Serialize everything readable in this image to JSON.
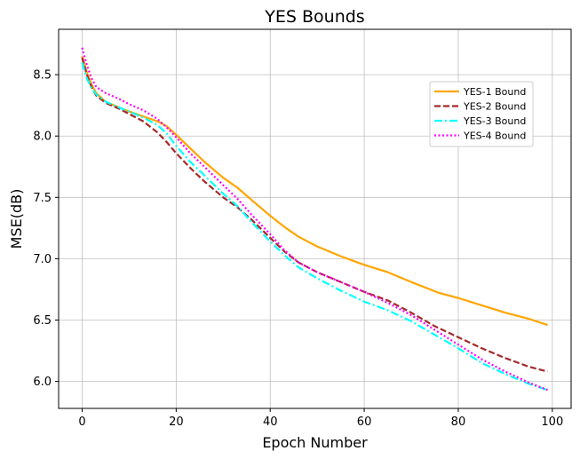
{
  "chart_data": {
    "type": "line",
    "title": "YES Bounds",
    "xlabel": "Epoch Number",
    "ylabel": "MSE(dB)",
    "xlim": [
      -5,
      104
    ],
    "ylim": [
      5.78,
      8.87
    ],
    "xticks": [
      0,
      20,
      40,
      60,
      80,
      100
    ],
    "yticks": [
      6.0,
      6.5,
      7.0,
      7.5,
      8.0,
      8.5
    ],
    "xtick_labels": [
      "0",
      "20",
      "40",
      "60",
      "80",
      "100"
    ],
    "ytick_labels": [
      "6.0",
      "6.5",
      "7.0",
      "7.5",
      "8.0",
      "8.5"
    ],
    "grid": true,
    "legend_position": "upper-right",
    "series": [
      {
        "name": "YES-1 Bound",
        "color": "#FFA500",
        "style": "solid",
        "x": [
          0,
          1,
          2,
          3,
          5,
          8,
          10,
          13,
          16,
          18,
          20,
          23,
          26,
          30,
          33,
          36,
          40,
          43,
          46,
          50,
          55,
          60,
          65,
          70,
          76,
          80,
          85,
          90,
          95,
          99
        ],
        "y": [
          8.65,
          8.52,
          8.42,
          8.35,
          8.28,
          8.23,
          8.2,
          8.16,
          8.12,
          8.08,
          8.01,
          7.9,
          7.79,
          7.66,
          7.58,
          7.48,
          7.35,
          7.26,
          7.18,
          7.1,
          7.02,
          6.95,
          6.89,
          6.81,
          6.72,
          6.68,
          6.62,
          6.56,
          6.51,
          6.46
        ]
      },
      {
        "name": "YES-2 Bound",
        "color": "#A52A2A",
        "style": "dashed",
        "x": [
          0,
          1,
          2,
          3,
          5,
          8,
          10,
          13,
          16,
          18,
          20,
          23,
          26,
          30,
          33,
          36,
          40,
          43,
          46,
          50,
          55,
          60,
          65,
          70,
          75,
          80,
          85,
          90,
          95,
          99
        ],
        "y": [
          8.64,
          8.5,
          8.4,
          8.33,
          8.27,
          8.22,
          8.18,
          8.12,
          8.03,
          7.95,
          7.86,
          7.74,
          7.63,
          7.5,
          7.42,
          7.32,
          7.17,
          7.06,
          6.97,
          6.89,
          6.81,
          6.73,
          6.66,
          6.56,
          6.45,
          6.36,
          6.27,
          6.19,
          6.12,
          6.08
        ]
      },
      {
        "name": "YES-3 Bound",
        "color": "#00FFFF",
        "style": "dashdot",
        "x": [
          0,
          1,
          2,
          3,
          5,
          8,
          10,
          13,
          16,
          18,
          20,
          23,
          26,
          30,
          33,
          36,
          40,
          43,
          46,
          50,
          55,
          60,
          65,
          70,
          75,
          80,
          85,
          90,
          95,
          99
        ],
        "y": [
          8.6,
          8.47,
          8.39,
          8.34,
          8.28,
          8.23,
          8.2,
          8.15,
          8.09,
          8.02,
          7.92,
          7.79,
          7.68,
          7.53,
          7.43,
          7.3,
          7.14,
          7.03,
          6.93,
          6.84,
          6.74,
          6.65,
          6.58,
          6.49,
          6.38,
          6.27,
          6.15,
          6.06,
          5.98,
          5.93
        ]
      },
      {
        "name": "YES-4 Bound",
        "color": "#FF00FF",
        "style": "dotted",
        "x": [
          0,
          1,
          2,
          3,
          5,
          8,
          10,
          13,
          16,
          18,
          20,
          23,
          26,
          30,
          33,
          36,
          40,
          43,
          46,
          50,
          55,
          60,
          65,
          70,
          75,
          80,
          85,
          90,
          95,
          99
        ],
        "y": [
          8.72,
          8.58,
          8.47,
          8.4,
          8.35,
          8.3,
          8.26,
          8.21,
          8.14,
          8.07,
          7.99,
          7.86,
          7.75,
          7.6,
          7.49,
          7.36,
          7.2,
          7.07,
          6.97,
          6.89,
          6.81,
          6.73,
          6.64,
          6.54,
          6.42,
          6.3,
          6.18,
          6.08,
          5.99,
          5.93
        ]
      }
    ]
  }
}
